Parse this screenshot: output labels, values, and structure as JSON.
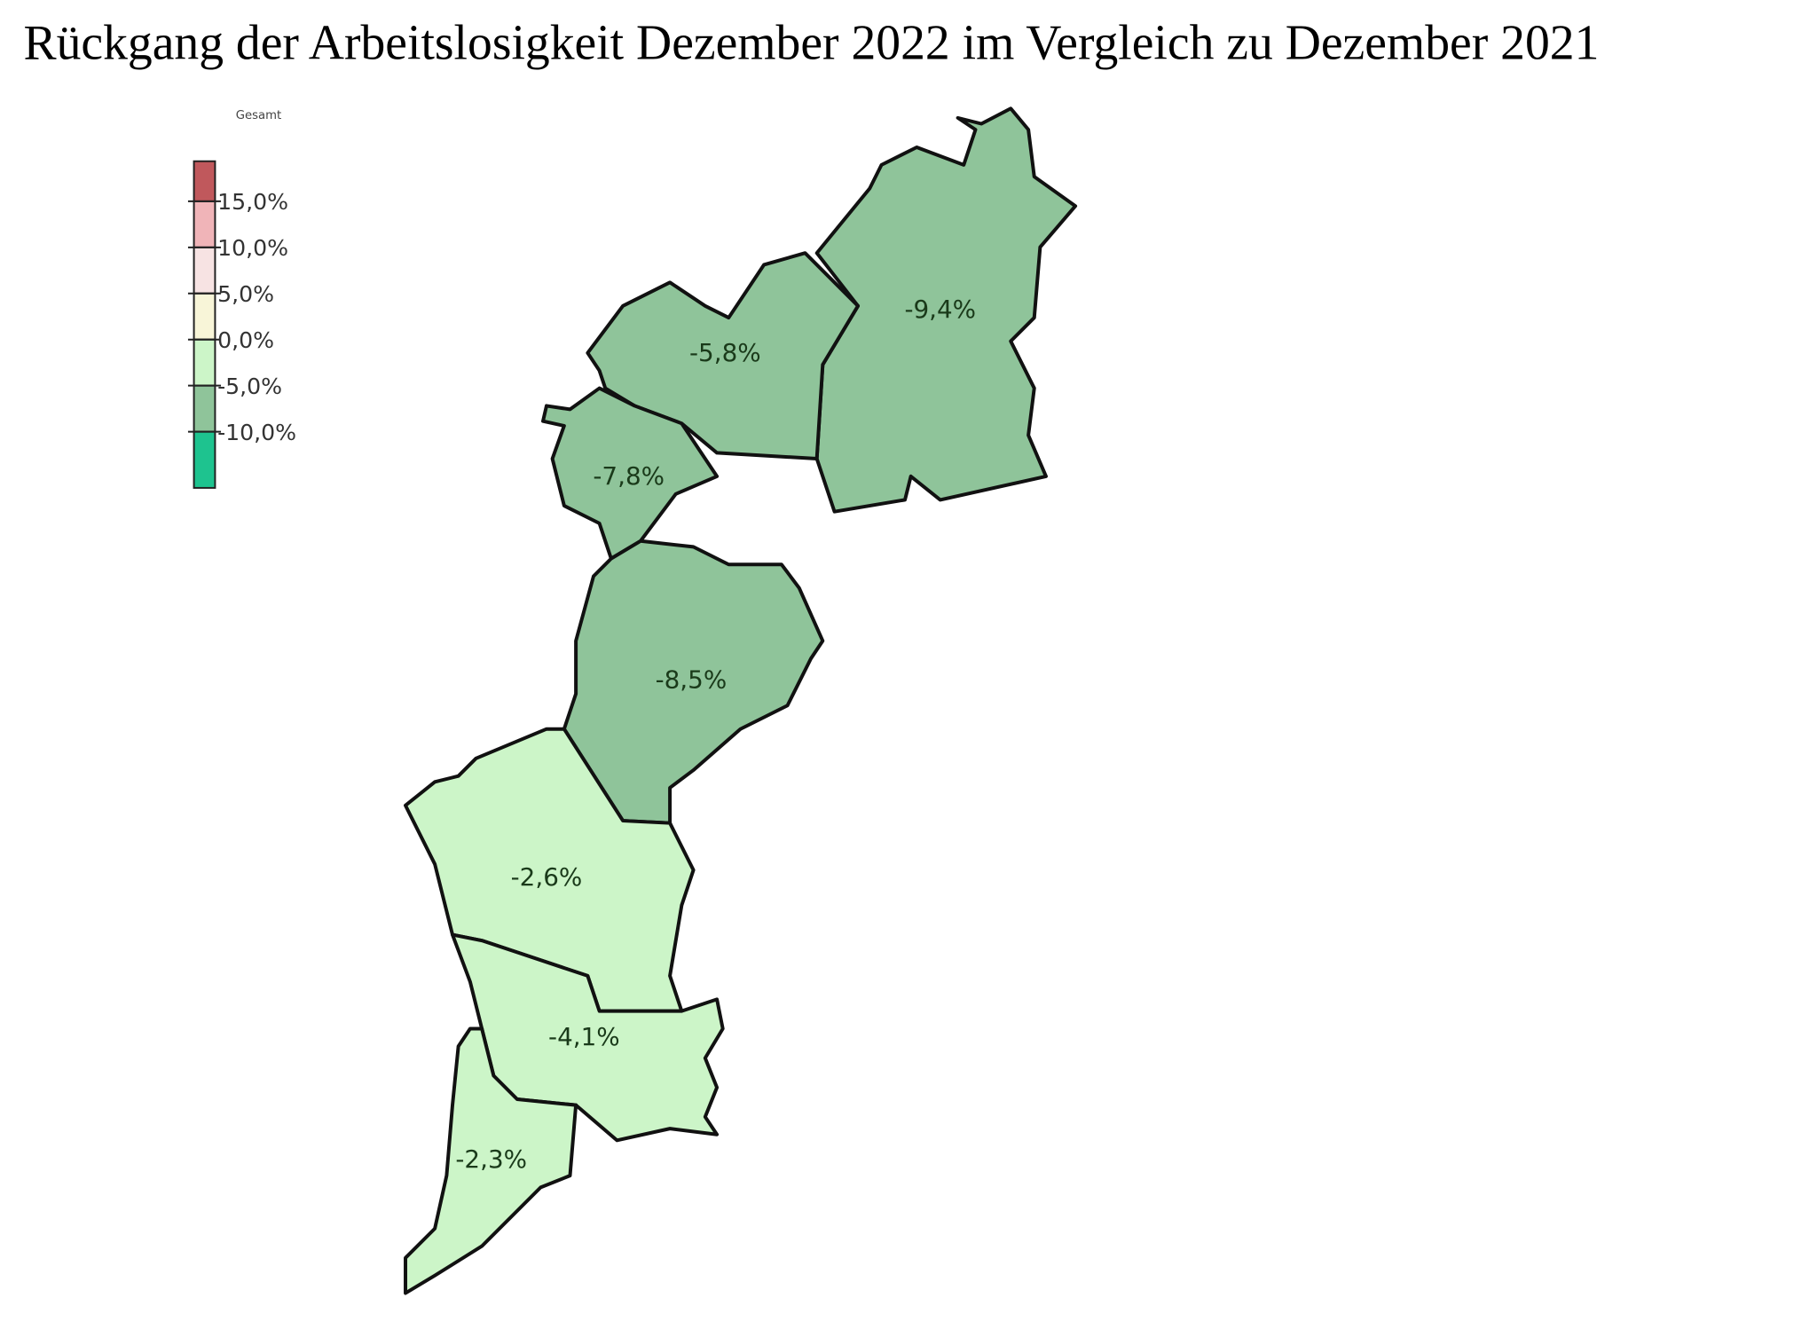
{
  "chart_data": {
    "type": "choropleth",
    "title": "Rückgang der Arbeitslosigkeit Dezember 2022 im Vergleich zu Dezember 2021",
    "legend_title": "Gesamt",
    "scale": {
      "ticks": [
        {
          "value": 15,
          "label": "15,0%"
        },
        {
          "value": 10,
          "label": "10,0%"
        },
        {
          "value": 5,
          "label": "5,0%"
        },
        {
          "value": 0,
          "label": "0,0%"
        },
        {
          "value": -5,
          "label": "-5,0%"
        },
        {
          "value": -10,
          "label": "-10,0%"
        }
      ],
      "colors": [
        "#c0585c",
        "#f0b4b8",
        "#f7e3e3",
        "#f8f5d8",
        "#ccf5c8",
        "#8fc49a",
        "#1ec38f"
      ]
    },
    "values": [
      -9.4,
      -5.8,
      -7.8,
      -8.5,
      -2.6,
      -4.1,
      -2.3
    ],
    "value_labels": [
      "-9,4%",
      "-5,8%",
      "-7,8%",
      "-8,5%",
      "-2,6%",
      "-4,1%",
      "-2,3%"
    ]
  }
}
